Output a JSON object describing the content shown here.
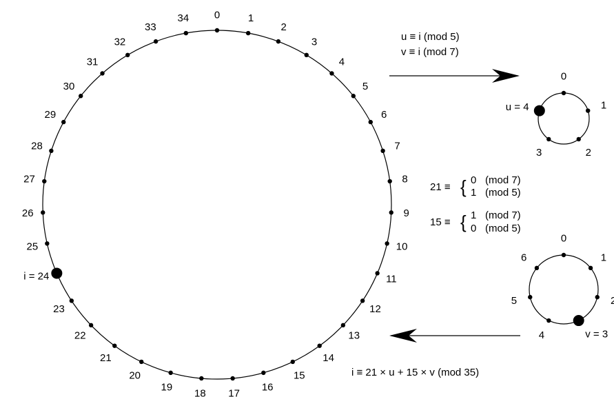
{
  "big_ring": {
    "labels": [
      "0",
      "1",
      "2",
      "3",
      "4",
      "5",
      "6",
      "7",
      "8",
      "9",
      "10",
      "11",
      "12",
      "13",
      "14",
      "15",
      "16",
      "17",
      "18",
      "19",
      "20",
      "21",
      "22",
      "23",
      "24",
      "25",
      "26",
      "27",
      "28",
      "29",
      "30",
      "31",
      "32",
      "33",
      "34"
    ],
    "highlight_index": 24,
    "highlight_label": "i = 24"
  },
  "ring_mod5": {
    "labels": [
      "0",
      "1",
      "2",
      "3",
      "4"
    ],
    "highlight_index": 4,
    "highlight_label": "u = 4"
  },
  "ring_mod7": {
    "labels": [
      "0",
      "1",
      "2",
      "3",
      "4",
      "5",
      "6"
    ],
    "highlight_index": 3,
    "highlight_label": "v = 3"
  },
  "map_top": {
    "line1": "u ≡ i (mod 5)",
    "line2": "v ≡ i (mod 7)"
  },
  "crt_21": {
    "lhs": "21 ≡",
    "top_value": "0",
    "top_mod": "(mod 7)",
    "bottom_value": "1",
    "bottom_mod": "(mod 5)"
  },
  "crt_15": {
    "lhs": "15 ≡",
    "top_value": "1",
    "top_mod": "(mod 7)",
    "bottom_value": "0",
    "bottom_mod": "(mod 5)"
  },
  "map_bottom": {
    "formula": "i ≡ 21 × u + 15 × v (mod 35)"
  }
}
